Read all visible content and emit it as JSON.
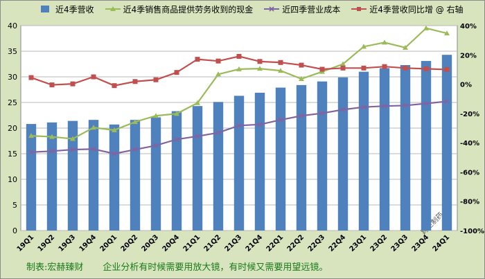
{
  "chart_data": {
    "type": "bar+line",
    "categories": [
      "19Q1",
      "19Q2",
      "19Q3",
      "19Q4",
      "20Q1",
      "20Q2",
      "20Q3",
      "20Q4",
      "21Q1",
      "21Q2",
      "21Q3",
      "21Q4",
      "22Q1",
      "22Q2",
      "22Q3",
      "22Q4",
      "23Q1",
      "23Q2",
      "23Q3",
      "23Q4",
      "24Q1"
    ],
    "left_axis": {
      "ylim": [
        0,
        40
      ],
      "ticks": [
        0,
        5,
        10,
        15,
        20,
        25,
        30,
        35,
        40
      ]
    },
    "right_axis": {
      "ylim": [
        -100,
        40
      ],
      "ticks": [
        "-100%",
        "-80%",
        "-60%",
        "-40%",
        "-20%",
        "0%",
        "20%",
        "40%"
      ]
    },
    "series": [
      {
        "name": "近4季营收",
        "type": "bar",
        "axis": "left",
        "color": "#4f81bd",
        "values": [
          20.8,
          21.1,
          21.4,
          21.6,
          20.7,
          21.6,
          22.1,
          23.3,
          24.3,
          25.1,
          26.3,
          26.9,
          27.9,
          28.4,
          29.1,
          29.9,
          31.0,
          31.7,
          32.3,
          33.1,
          34.3
        ]
      },
      {
        "name": "近4季销售商品提供劳务收到的现金",
        "type": "line",
        "axis": "left",
        "color": "#9bbb59",
        "marker": "triangle",
        "values": [
          18.5,
          18.3,
          17.9,
          20.1,
          19.6,
          21.2,
          22.4,
          22.8,
          24.9,
          30.5,
          31.5,
          31.6,
          31.2,
          29.6,
          31.0,
          32.5,
          35.9,
          36.7,
          35.7,
          39.5,
          38.5
        ]
      },
      {
        "name": "近四季营业成本",
        "type": "line",
        "axis": "left",
        "color": "#8064a2",
        "marker": "x",
        "values": [
          15.3,
          15.5,
          15.8,
          15.9,
          15.0,
          15.8,
          16.6,
          17.8,
          18.4,
          19.1,
          20.5,
          20.7,
          21.6,
          22.4,
          22.9,
          23.6,
          24.1,
          24.3,
          24.4,
          24.8,
          25.2
        ]
      },
      {
        "name": "近4季营收同比增 @ 右轴",
        "type": "line",
        "axis": "right",
        "color": "#c0504d",
        "marker": "square",
        "values": [
          4.5,
          -0.5,
          0.2,
          5.0,
          -1.0,
          1.8,
          3.0,
          8.0,
          17.0,
          15.8,
          19.0,
          15.5,
          14.8,
          13.0,
          10.2,
          11.0,
          11.0,
          12.0,
          11.0,
          10.5,
          10.0
        ]
      }
    ],
    "grid": true,
    "legend_position": "top"
  },
  "legend": [
    {
      "label": "近4季营收",
      "color": "#4f81bd",
      "symbol": "bar"
    },
    {
      "label": "近4季销售商品提供劳务收到的现金",
      "color": "#9bbb59",
      "symbol": "triangle"
    },
    {
      "label": "近四季营业成本",
      "color": "#8064a2",
      "symbol": "x"
    },
    {
      "label": "近4季营收同比增 @ 右轴",
      "color": "#c0504d",
      "symbol": "square"
    }
  ],
  "watermark": "跨栏制药",
  "footer": {
    "maker": "制表:宏赫臻财",
    "motto": "企业分析有时候需要用放大镜，有时候又需要用望远镜。"
  }
}
